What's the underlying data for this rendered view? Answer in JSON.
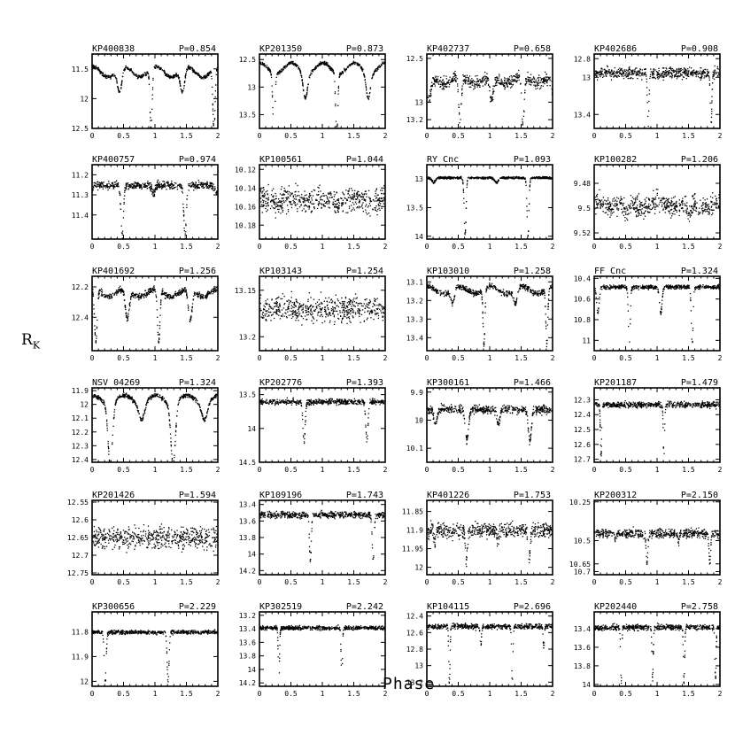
{
  "figure": {
    "ylabel_main": "R",
    "ylabel_sub": "K",
    "xlabel": "Phase"
  },
  "chart_data": [
    {
      "type": "scatter",
      "name": "KP400838",
      "period": "P=0.854",
      "xlim": [
        0,
        2
      ],
      "ylim": [
        12.5,
        11.25
      ],
      "xticks": [
        "0",
        "0.5",
        "1",
        "1.5",
        "2"
      ],
      "yticks": [
        {
          "v": 11.5,
          "label": "11.5"
        },
        {
          "v": 12,
          "label": "12"
        },
        {
          "v": 12.5,
          "label": "12.5"
        }
      ],
      "base": 11.45,
      "noise": 0.03,
      "eclipses": [
        {
          "phase": 0.93,
          "depth": 1.05,
          "width": 0.035
        },
        {
          "phase": 0.43,
          "depth": 0.4,
          "width": 0.07
        }
      ],
      "ellip": 0.18
    },
    {
      "type": "scatter",
      "name": "KP201350",
      "period": "P=0.873",
      "xlim": [
        0,
        2
      ],
      "ylim": [
        13.75,
        12.4
      ],
      "xticks": [
        "0",
        "0.5",
        "1",
        "1.5",
        "2"
      ],
      "yticks": [
        {
          "v": 12.5,
          "label": "12.5"
        },
        {
          "v": 13,
          "label": "13"
        },
        {
          "v": 13.5,
          "label": "13.5"
        }
      ],
      "base": 12.55,
      "noise": 0.03,
      "eclipses": [
        {
          "phase": 0.22,
          "depth": 1.1,
          "width": 0.035
        },
        {
          "phase": 0.72,
          "depth": 0.45,
          "width": 0.07
        }
      ],
      "ellip": 0.2
    },
    {
      "type": "scatter",
      "name": "KP402737",
      "period": "P=0.658",
      "xlim": [
        0,
        2
      ],
      "ylim": [
        13.3,
        12.45
      ],
      "xticks": [
        "0",
        "0.5",
        "1",
        "1.5",
        "2"
      ],
      "yticks": [
        {
          "v": 12.5,
          "label": "12.5"
        },
        {
          "v": 13,
          "label": "13"
        },
        {
          "v": 13.2,
          "label": "13.2"
        }
      ],
      "base": 12.7,
      "noise": 0.07,
      "eclipses": [
        {
          "phase": 0.52,
          "depth": 0.55,
          "width": 0.04
        },
        {
          "phase": 0.02,
          "depth": 0.25,
          "width": 0.07
        }
      ],
      "ellip": 0.08
    },
    {
      "type": "scatter",
      "name": "KP402686",
      "period": "P=0.908",
      "xlim": [
        0,
        2
      ],
      "ylim": [
        13.55,
        12.75
      ],
      "xticks": [
        "0",
        "0.5",
        "1",
        "1.5",
        "2"
      ],
      "yticks": [
        {
          "v": 12.8,
          "label": "12.8"
        },
        {
          "v": 13,
          "label": "13"
        },
        {
          "v": 13.4,
          "label": "13.4"
        }
      ],
      "base": 12.95,
      "noise": 0.06,
      "eclipses": [
        {
          "phase": 0.85,
          "depth": 0.55,
          "width": 0.025
        }
      ],
      "ellip": 0.0
    },
    {
      "type": "scatter",
      "name": "KP400757",
      "period": "P=0.974",
      "xlim": [
        0,
        2
      ],
      "ylim": [
        11.52,
        11.15
      ],
      "xticks": [
        "0",
        "0.5",
        "1",
        "1.5",
        "2"
      ],
      "yticks": [
        {
          "v": 11.2,
          "label": "11.2"
        },
        {
          "v": 11.3,
          "label": "11.3"
        },
        {
          "v": 11.4,
          "label": "11.4"
        }
      ],
      "base": 11.25,
      "noise": 0.02,
      "eclipses": [
        {
          "phase": 0.47,
          "depth": 0.25,
          "width": 0.04
        },
        {
          "phase": 0.97,
          "depth": 0.04,
          "width": 0.05
        }
      ],
      "ellip": 0.0
    },
    {
      "type": "scatter",
      "name": "KP100561",
      "period": "P=1.044",
      "xlim": [
        0,
        2
      ],
      "ylim": [
        10.195,
        10.115
      ],
      "xticks": [
        "0",
        "0.5",
        "1",
        "1.5",
        "2"
      ],
      "yticks": [
        {
          "v": 10.12,
          "label": "10.12"
        },
        {
          "v": 10.14,
          "label": "10.14"
        },
        {
          "v": 10.16,
          "label": "10.16"
        },
        {
          "v": 10.18,
          "label": "10.18"
        }
      ],
      "base": 10.15,
      "noise": 0.013,
      "eclipses": [],
      "ellip": 0.006
    },
    {
      "type": "scatter",
      "name": "RY Cnc",
      "period": "P=1.093",
      "xlim": [
        0,
        2
      ],
      "ylim": [
        14.05,
        12.75
      ],
      "xticks": [
        "0",
        "0.5",
        "1",
        "1.5",
        "2"
      ],
      "yticks": [
        {
          "v": 13,
          "label": "13"
        },
        {
          "v": 13.5,
          "label": "13.5"
        },
        {
          "v": 14,
          "label": "14"
        }
      ],
      "base": 12.97,
      "noise": 0.02,
      "eclipses": [
        {
          "phase": 0.6,
          "depth": 1.0,
          "width": 0.03
        },
        {
          "phase": 0.1,
          "depth": 0.08,
          "width": 0.06
        }
      ],
      "ellip": 0.0
    },
    {
      "type": "scatter",
      "name": "KP100282",
      "period": "P=1.206",
      "xlim": [
        0,
        2
      ],
      "ylim": [
        9.525,
        9.465
      ],
      "xticks": [
        "0",
        "0.5",
        "1",
        "1.5",
        "2"
      ],
      "yticks": [
        {
          "v": 9.48,
          "label": "9.48"
        },
        {
          "v": 9.5,
          "label": "9.5"
        },
        {
          "v": 9.52,
          "label": "9.52"
        }
      ],
      "base": 9.495,
      "noise": 0.008,
      "eclipses": [
        {
          "phase": 0.5,
          "depth": 0.01,
          "width": 0.06
        }
      ],
      "ellip": 0.004
    },
    {
      "type": "scatter",
      "name": "KP401692",
      "period": "P=1.256",
      "xlim": [
        0,
        2
      ],
      "ylim": [
        12.62,
        12.13
      ],
      "xticks": [
        "0",
        "0.5",
        "1",
        "1.5",
        "2"
      ],
      "yticks": [
        {
          "v": 12.2,
          "label": "12.2"
        },
        {
          "v": 12.4,
          "label": "12.4"
        }
      ],
      "base": 12.21,
      "noise": 0.02,
      "eclipses": [
        {
          "phase": 0.05,
          "depth": 0.35,
          "width": 0.04
        },
        {
          "phase": 0.55,
          "depth": 0.2,
          "width": 0.06
        }
      ],
      "ellip": 0.05
    },
    {
      "type": "scatter",
      "name": "KP103143",
      "period": "P=1.254",
      "xlim": [
        0,
        2
      ],
      "ylim": [
        13.215,
        13.135
      ],
      "xticks": [
        "0",
        "0.5",
        "1",
        "1.5",
        "2"
      ],
      "yticks": [
        {
          "v": 13.15,
          "label": "13.15"
        },
        {
          "v": 13.2,
          "label": "13.2"
        }
      ],
      "base": 13.17,
      "noise": 0.014,
      "eclipses": [],
      "ellip": 0.0
    },
    {
      "type": "scatter",
      "name": "KP103010",
      "period": "P=1.258",
      "xlim": [
        0,
        2
      ],
      "ylim": [
        13.47,
        13.07
      ],
      "xticks": [
        "0",
        "0.5",
        "1",
        "1.5",
        "2"
      ],
      "yticks": [
        {
          "v": 13.1,
          "label": "13.1"
        },
        {
          "v": 13.2,
          "label": "13.2"
        },
        {
          "v": 13.3,
          "label": "13.3"
        },
        {
          "v": 13.4,
          "label": "13.4"
        }
      ],
      "base": 13.12,
      "noise": 0.015,
      "eclipses": [
        {
          "phase": 0.9,
          "depth": 0.3,
          "width": 0.03
        },
        {
          "phase": 0.4,
          "depth": 0.08,
          "width": 0.06
        }
      ],
      "ellip": 0.04
    },
    {
      "type": "scatter",
      "name": "FF Cnc",
      "period": "P=1.324",
      "xlim": [
        0,
        2
      ],
      "ylim": [
        11.1,
        10.38
      ],
      "xticks": [
        "0",
        "0.5",
        "1",
        "1.5",
        "2"
      ],
      "yticks": [
        {
          "v": 10.4,
          "label": "10.4"
        },
        {
          "v": 10.6,
          "label": "10.6"
        },
        {
          "v": 10.8,
          "label": "10.8"
        },
        {
          "v": 11,
          "label": "11"
        }
      ],
      "base": 10.48,
      "noise": 0.02,
      "eclipses": [
        {
          "phase": 0.55,
          "depth": 0.55,
          "width": 0.03
        },
        {
          "phase": 0.05,
          "depth": 0.25,
          "width": 0.04
        }
      ],
      "ellip": 0.0
    },
    {
      "type": "scatter",
      "name": "NSV 04269",
      "period": "P=1.324",
      "xlim": [
        0,
        2
      ],
      "ylim": [
        12.42,
        11.88
      ],
      "xticks": [
        "0",
        "0.5",
        "1",
        "1.5",
        "2"
      ],
      "yticks": [
        {
          "v": 11.9,
          "label": "11.9"
        },
        {
          "v": 12,
          "label": "12"
        },
        {
          "v": 12.1,
          "label": "12.1"
        },
        {
          "v": 12.2,
          "label": "12.2"
        },
        {
          "v": 12.3,
          "label": "12.3"
        },
        {
          "v": 12.4,
          "label": "12.4"
        }
      ],
      "base": 11.93,
      "noise": 0.015,
      "eclipses": [
        {
          "phase": 0.28,
          "depth": 0.45,
          "width": 0.07
        },
        {
          "phase": 0.78,
          "depth": 0.12,
          "width": 0.09
        }
      ],
      "ellip": 0.06
    },
    {
      "type": "scatter",
      "name": "KP202776",
      "period": "P=1.393",
      "xlim": [
        0,
        2
      ],
      "ylim": [
        14.5,
        13.4
      ],
      "xticks": [
        "0",
        "0.5",
        "1",
        "1.5",
        "2"
      ],
      "yticks": [
        {
          "v": 13.5,
          "label": "13.5"
        },
        {
          "v": 14,
          "label": "14"
        },
        {
          "v": 14.5,
          "label": "14.5"
        }
      ],
      "base": 13.6,
      "noise": 0.04,
      "eclipses": [
        {
          "phase": 0.7,
          "depth": 0.6,
          "width": 0.035
        }
      ],
      "ellip": 0.0
    },
    {
      "type": "scatter",
      "name": "KP300161",
      "period": "P=1.466",
      "xlim": [
        0,
        2
      ],
      "ylim": [
        10.15,
        9.885
      ],
      "xticks": [
        "0",
        "0.5",
        "1",
        "1.5",
        "2"
      ],
      "yticks": [
        {
          "v": 9.9,
          "label": "9.9"
        },
        {
          "v": 10,
          "label": "10"
        },
        {
          "v": 10.1,
          "label": "10.1"
        }
      ],
      "base": 9.96,
      "noise": 0.015,
      "eclipses": [
        {
          "phase": 0.63,
          "depth": 0.11,
          "width": 0.05
        },
        {
          "phase": 0.13,
          "depth": 0.05,
          "width": 0.05
        }
      ],
      "ellip": 0.0
    },
    {
      "type": "scatter",
      "name": "KP201187",
      "period": "P=1.479",
      "xlim": [
        0,
        2
      ],
      "ylim": [
        12.72,
        12.22
      ],
      "xticks": [
        "0",
        "0.5",
        "1",
        "1.5",
        "2"
      ],
      "yticks": [
        {
          "v": 12.3,
          "label": "12.3"
        },
        {
          "v": 12.4,
          "label": "12.4"
        },
        {
          "v": 12.5,
          "label": "12.5"
        },
        {
          "v": 12.6,
          "label": "12.6"
        },
        {
          "v": 12.7,
          "label": "12.7"
        }
      ],
      "base": 12.33,
      "noise": 0.02,
      "eclipses": [
        {
          "phase": 0.1,
          "depth": 0.35,
          "width": 0.02
        }
      ],
      "ellip": 0.0
    },
    {
      "type": "scatter",
      "name": "KP201426",
      "period": "P=1.594",
      "xlim": [
        0,
        2
      ],
      "ylim": [
        12.755,
        12.545
      ],
      "xticks": [
        "0",
        "0.5",
        "1",
        "1.5",
        "2"
      ],
      "yticks": [
        {
          "v": 12.55,
          "label": "12.55"
        },
        {
          "v": 12.6,
          "label": "12.6"
        },
        {
          "v": 12.65,
          "label": "12.65"
        },
        {
          "v": 12.7,
          "label": "12.7"
        },
        {
          "v": 12.75,
          "label": "12.75"
        }
      ],
      "base": 12.65,
      "noise": 0.03,
      "eclipses": [],
      "ellip": 0.0
    },
    {
      "type": "scatter",
      "name": "KP109196",
      "period": "P=1.743",
      "xlim": [
        0,
        2
      ],
      "ylim": [
        14.25,
        13.35
      ],
      "xticks": [
        "0",
        "0.5",
        "1",
        "1.5",
        "2"
      ],
      "yticks": [
        {
          "v": 13.4,
          "label": "13.4"
        },
        {
          "v": 13.6,
          "label": "13.6"
        },
        {
          "v": 13.8,
          "label": "13.8"
        },
        {
          "v": 14,
          "label": "14"
        },
        {
          "v": 14.2,
          "label": "14.2"
        }
      ],
      "base": 13.52,
      "noise": 0.04,
      "eclipses": [
        {
          "phase": 0.8,
          "depth": 0.55,
          "width": 0.03
        }
      ],
      "ellip": 0.0
    },
    {
      "type": "scatter",
      "name": "KP401226",
      "period": "P=1.753",
      "xlim": [
        0,
        2
      ],
      "ylim": [
        12.02,
        11.82
      ],
      "xticks": [
        "0",
        "0.5",
        "1",
        "1.5",
        "2"
      ],
      "yticks": [
        {
          "v": 11.85,
          "label": "11.85"
        },
        {
          "v": 11.9,
          "label": "11.9"
        },
        {
          "v": 11.95,
          "label": "11.95"
        },
        {
          "v": 12,
          "label": "12"
        }
      ],
      "base": 11.9,
      "noise": 0.02,
      "eclipses": [
        {
          "phase": 0.62,
          "depth": 0.08,
          "width": 0.03
        },
        {
          "phase": 0.12,
          "depth": 0.03,
          "width": 0.03
        }
      ],
      "ellip": 0.0
    },
    {
      "type": "scatter",
      "name": "KP200312",
      "period": "P=2.150",
      "xlim": [
        0,
        2
      ],
      "ylim": [
        10.72,
        10.24
      ],
      "xticks": [
        "0",
        "0.5",
        "1",
        "1.5",
        "2"
      ],
      "yticks": [
        {
          "v": 10.25,
          "label": "10.25"
        },
        {
          "v": 10.5,
          "label": "10.5"
        },
        {
          "v": 10.65,
          "label": "10.65"
        },
        {
          "v": 10.7,
          "label": "10.7"
        }
      ],
      "base": 10.45,
      "noise": 0.03,
      "eclipses": [
        {
          "phase": 0.83,
          "depth": 0.2,
          "width": 0.025
        },
        {
          "phase": 0.33,
          "depth": 0.05,
          "width": 0.025
        }
      ],
      "ellip": 0.0
    },
    {
      "type": "scatter",
      "name": "KP300656",
      "period": "P=2.229",
      "xlim": [
        0,
        2
      ],
      "ylim": [
        12.02,
        11.72
      ],
      "xticks": [
        "0",
        "0.5",
        "1",
        "1.5",
        "2"
      ],
      "yticks": [
        {
          "v": 11.8,
          "label": "11.8"
        },
        {
          "v": 11.9,
          "label": "11.9"
        },
        {
          "v": 12,
          "label": "12"
        }
      ],
      "base": 11.8,
      "noise": 0.008,
      "eclipses": [
        {
          "phase": 0.2,
          "depth": 0.2,
          "width": 0.03
        }
      ],
      "ellip": 0.0
    },
    {
      "type": "scatter",
      "name": "KP302519",
      "period": "P=2.242",
      "xlim": [
        0,
        2
      ],
      "ylim": [
        14.25,
        13.15
      ],
      "xticks": [
        "0",
        "0.5",
        "1",
        "1.5",
        "2"
      ],
      "yticks": [
        {
          "v": 13.2,
          "label": "13.2"
        },
        {
          "v": 13.4,
          "label": "13.4"
        },
        {
          "v": 13.6,
          "label": "13.6"
        },
        {
          "v": 13.8,
          "label": "13.8"
        },
        {
          "v": 14,
          "label": "14"
        },
        {
          "v": 14.2,
          "label": "14.2"
        }
      ],
      "base": 13.38,
      "noise": 0.03,
      "eclipses": [
        {
          "phase": 0.3,
          "depth": 0.8,
          "width": 0.02
        }
      ],
      "ellip": 0.0
    },
    {
      "type": "scatter",
      "name": "KP104115",
      "period": "P=2.696",
      "xlim": [
        0,
        2
      ],
      "ylim": [
        13.25,
        12.35
      ],
      "xticks": [
        "0",
        "0.5",
        "1",
        "1.5",
        "2"
      ],
      "yticks": [
        {
          "v": 12.4,
          "label": "12.4"
        },
        {
          "v": 12.6,
          "label": "12.6"
        },
        {
          "v": 12.8,
          "label": "12.8"
        },
        {
          "v": 13,
          "label": "13"
        },
        {
          "v": 13.2,
          "label": "13.2"
        }
      ],
      "base": 12.52,
      "noise": 0.03,
      "eclipses": [
        {
          "phase": 0.35,
          "depth": 0.7,
          "width": 0.02
        },
        {
          "phase": 0.85,
          "depth": 0.25,
          "width": 0.02
        }
      ],
      "ellip": 0.0
    },
    {
      "type": "scatter",
      "name": "KP202440",
      "period": "P=2.758",
      "xlim": [
        0,
        2
      ],
      "ylim": [
        14.02,
        13.22
      ],
      "xticks": [
        "0",
        "0.5",
        "1",
        "1.5",
        "2"
      ],
      "yticks": [
        {
          "v": 13.4,
          "label": "13.4"
        },
        {
          "v": 13.6,
          "label": "13.6"
        },
        {
          "v": 13.8,
          "label": "13.8"
        },
        {
          "v": 14,
          "label": "14"
        }
      ],
      "base": 13.38,
      "noise": 0.03,
      "eclipses": [
        {
          "phase": 0.42,
          "depth": 0.6,
          "width": 0.02
        },
        {
          "phase": 0.92,
          "depth": 0.55,
          "width": 0.02
        }
      ],
      "ellip": 0.0
    }
  ]
}
